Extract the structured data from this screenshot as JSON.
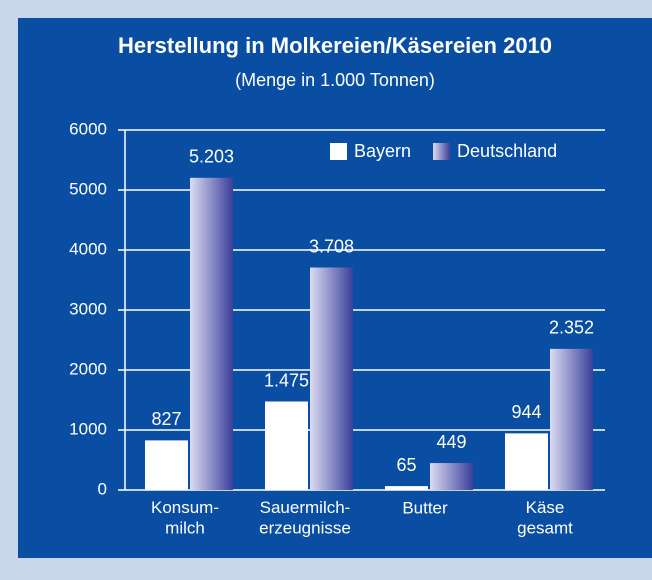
{
  "chart_data": {
    "type": "bar",
    "title": "Herstellung in Molkereien/Käsereien 2010",
    "subtitle": "(Menge in 1.000 Tonnen)",
    "categories": [
      "Konsum-\nmilch",
      "Sauermilch-\nerzeugnisse",
      "Butter",
      "Käse\ngesamt"
    ],
    "series": [
      {
        "name": "Bayern",
        "color": "#ffffff",
        "values": [
          827,
          1475,
          65,
          944
        ],
        "value_labels": [
          "827",
          "1.475",
          "65",
          "944"
        ]
      },
      {
        "name": "Deutschland",
        "color": "#3a3f9a",
        "values": [
          5203,
          3708,
          449,
          2352
        ],
        "value_labels": [
          "5.203",
          "3.708",
          "449",
          "2.352"
        ]
      }
    ],
    "ylim": [
      0,
      6000
    ],
    "yticks": [
      0,
      1000,
      2000,
      3000,
      4000,
      5000,
      6000
    ],
    "grid": true,
    "legend": "top-right"
  }
}
